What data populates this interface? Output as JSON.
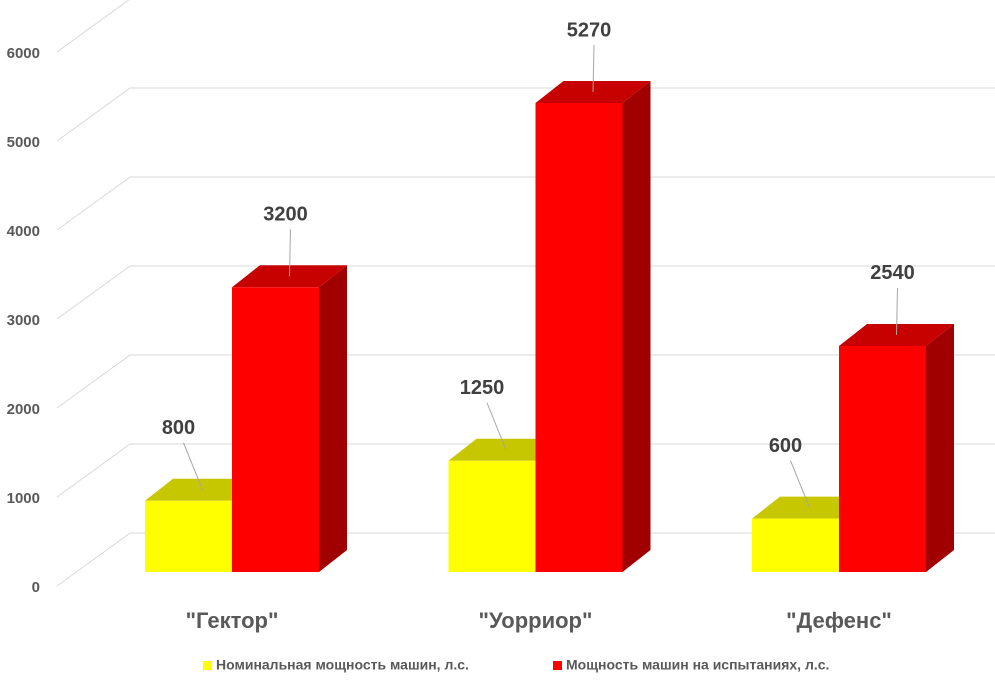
{
  "chart_data": {
    "type": "bar3d",
    "categories": [
      "\"Гектор\"",
      "\"Уорриор\"",
      "\"Дефенс\""
    ],
    "series": [
      {
        "name": "Номинальная мощность машин, л.с.",
        "color": "#ffff00",
        "values": [
          800,
          1250,
          600
        ]
      },
      {
        "name": "Мощность машин на испытаниях, л.с.",
        "color": "#ff0000",
        "values": [
          3200,
          5270,
          2540
        ]
      }
    ],
    "ylim": [
      0,
      6000
    ],
    "yticks": [
      0,
      1000,
      2000,
      3000,
      4000,
      5000,
      6000
    ],
    "grid": true,
    "legend": "bottom"
  }
}
